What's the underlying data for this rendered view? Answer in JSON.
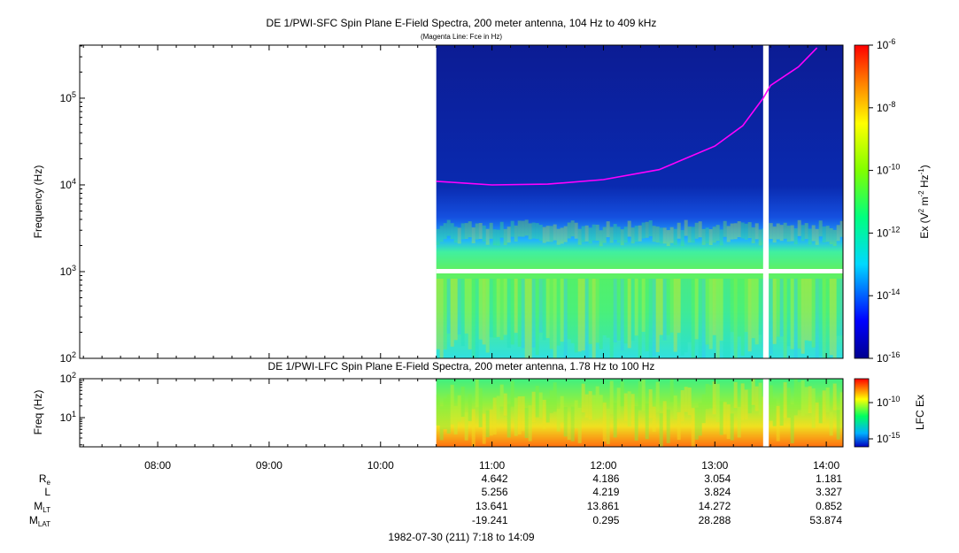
{
  "chart_data": [
    {
      "type": "heatmap",
      "title": "DE 1/PWI-SFC  Spin Plane E-Field Spectra, 200 meter antenna, 104 Hz to 409 kHz",
      "subtitle": "(Magenta Line: Fce in Hz)",
      "ylabel": "Frequency (Hz)",
      "yscale": "log",
      "ylim": [
        100,
        409000
      ],
      "yticks": [
        {
          "base": "10",
          "exp": "2"
        },
        {
          "base": "10",
          "exp": "3"
        },
        {
          "base": "10",
          "exp": "4"
        },
        {
          "base": "10",
          "exp": "5"
        }
      ],
      "xlim": [
        "07:18",
        "14:09"
      ],
      "xticks": [
        "08:00",
        "09:00",
        "10:00",
        "11:00",
        "12:00",
        "13:00",
        "14:00"
      ],
      "data_start": "10:30",
      "data_gap": [
        "13:26",
        "13:29"
      ],
      "colorbar": {
        "label_main": "Ex (V",
        "label_sup1": "2",
        "label_mid": " m",
        "label_sup2": "-2",
        "label_hz": " Hz",
        "label_sup3": "-1",
        "label_end": ")",
        "scale": "log",
        "range": [
          1e-16,
          1e-06
        ],
        "ticks": [
          {
            "base": "10",
            "exp": "-6"
          },
          {
            "base": "10",
            "exp": "-8"
          },
          {
            "base": "10",
            "exp": "-10"
          },
          {
            "base": "10",
            "exp": "-12"
          },
          {
            "base": "10",
            "exp": "-14"
          },
          {
            "base": "10",
            "exp": "-16"
          }
        ]
      },
      "fce_line": {
        "color": "#ff00ff",
        "points": [
          {
            "t": "10:30",
            "f": 11000
          },
          {
            "t": "10:45",
            "f": 10500
          },
          {
            "t": "11:00",
            "f": 10000
          },
          {
            "t": "11:30",
            "f": 10200
          },
          {
            "t": "12:00",
            "f": 11500
          },
          {
            "t": "12:30",
            "f": 15000
          },
          {
            "t": "13:00",
            "f": 28000
          },
          {
            "t": "13:15",
            "f": 48000
          },
          {
            "t": "13:26",
            "f": 100000
          },
          {
            "t": "13:30",
            "f": 140000
          },
          {
            "t": "13:45",
            "f": 230000
          },
          {
            "t": "13:55",
            "f": 380000
          }
        ]
      }
    },
    {
      "type": "heatmap",
      "title": "DE 1/PWI-LFC  Spin Plane E-Field Spectra, 200 meter antenna, 1.78 Hz to 100 Hz",
      "ylabel": "Freq (Hz)",
      "yscale": "log",
      "ylim": [
        1.78,
        100
      ],
      "yticks": [
        {
          "base": "10",
          "exp": "1"
        },
        {
          "base": "10",
          "exp": "2"
        }
      ],
      "colorbar": {
        "label": "LFC Ex",
        "scale": "log",
        "ticks": [
          {
            "base": "10",
            "exp": "-10"
          },
          {
            "base": "10",
            "exp": "-15"
          }
        ]
      }
    }
  ],
  "ephemeris": {
    "rows": [
      {
        "label": "R",
        "sub": "e",
        "values": [
          "4.642",
          "4.186",
          "3.054",
          "1.181"
        ]
      },
      {
        "label": "L",
        "sub": "",
        "values": [
          "5.256",
          "4.219",
          "3.824",
          "3.327"
        ]
      },
      {
        "label": "M",
        "sub": "LT",
        "values": [
          "13.641",
          "13.861",
          "14.272",
          "0.852"
        ]
      },
      {
        "label": "M",
        "sub": "LAT",
        "values": [
          "-19.241",
          "0.295",
          "28.288",
          "53.874"
        ]
      }
    ],
    "times": [
      "11:00",
      "12:00",
      "13:00",
      "14:00"
    ]
  },
  "footer": "1982-07-30 (211) 7:18 to 14:09",
  "colors": {
    "fce": "#ff00ff",
    "background_high": "#0a1a8c"
  }
}
